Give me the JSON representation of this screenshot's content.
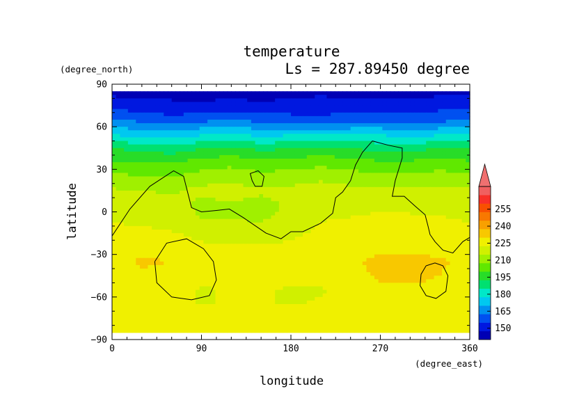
{
  "chart_data": {
    "type": "heatmap",
    "title": "temperature",
    "subtitle": "Ls = 287.89450 degree",
    "xlabel": "longitude",
    "ylabel": "latitude",
    "x_unit": "(degree_east)",
    "y_unit": "(degree_north)",
    "xlim": [
      0,
      360
    ],
    "ylim": [
      -90,
      90
    ],
    "xticks": [
      0,
      90,
      180,
      270,
      360
    ],
    "yticks": [
      90,
      60,
      30,
      0,
      -30,
      -60,
      -90
    ],
    "colorbar": {
      "levels": [
        150,
        165,
        180,
        195,
        210,
        225,
        240,
        255
      ],
      "tick_labels": [
        "150",
        "165",
        "180",
        "195",
        "210",
        "225",
        "240",
        "255"
      ],
      "colors": [
        "#0000b4",
        "#0018e0",
        "#0050f0",
        "#0090f0",
        "#00c8f0",
        "#00e8c8",
        "#00e070",
        "#28dc28",
        "#60e800",
        "#a0f000",
        "#d0f000",
        "#f0f000",
        "#f8c800",
        "#f8a000",
        "#f87800",
        "#f85000",
        "#f83028",
        "#f06060"
      ],
      "extend": "max"
    },
    "x": [
      0,
      30,
      60,
      90,
      120,
      150,
      180,
      210,
      240,
      270,
      300,
      330,
      360
    ],
    "y": [
      85,
      75,
      65,
      55,
      45,
      35,
      25,
      15,
      5,
      -5,
      -15,
      -25,
      -35,
      -45,
      -55,
      -65,
      -75,
      -85
    ],
    "values": [
      [
        145,
        145,
        145,
        145,
        145,
        145,
        145,
        145,
        145,
        145,
        145,
        145,
        145
      ],
      [
        152,
        150,
        149,
        148,
        150,
        148,
        150,
        152,
        150,
        150,
        150,
        152,
        152
      ],
      [
        163,
        160,
        158,
        160,
        162,
        160,
        158,
        156,
        160,
        160,
        158,
        160,
        163
      ],
      [
        176,
        174,
        172,
        176,
        178,
        174,
        176,
        178,
        176,
        176,
        174,
        176,
        176
      ],
      [
        192,
        190,
        188,
        192,
        194,
        190,
        192,
        194,
        192,
        190,
        190,
        192,
        192
      ],
      [
        201,
        200,
        199,
        203,
        205,
        202,
        203,
        205,
        203,
        201,
        201,
        203,
        201
      ],
      [
        209,
        208,
        207,
        211,
        212,
        210,
        211,
        213,
        211,
        209,
        209,
        211,
        209
      ],
      [
        216,
        215,
        214,
        217,
        218,
        216,
        217,
        219,
        217,
        216,
        216,
        217,
        216
      ],
      [
        220,
        219,
        218,
        213,
        214,
        213,
        216,
        220,
        219,
        220,
        220,
        221,
        220
      ],
      [
        222,
        221,
        220,
        215,
        215,
        214,
        217,
        222,
        223,
        225,
        224,
        223,
        222
      ],
      [
        224,
        224,
        223,
        220,
        219,
        219,
        221,
        224,
        225,
        226,
        225,
        225,
        224
      ],
      [
        226,
        227,
        227,
        224,
        224,
        223,
        224,
        225,
        226,
        227,
        227,
        227,
        226
      ],
      [
        228,
        231,
        230,
        226,
        226,
        225,
        226,
        226,
        228,
        233,
        233,
        231,
        228
      ],
      [
        227,
        229,
        228,
        224,
        224,
        224,
        224,
        224,
        226,
        232,
        233,
        230,
        227
      ],
      [
        226,
        226,
        225,
        222,
        223,
        223,
        222,
        222,
        224,
        227,
        228,
        227,
        226
      ],
      [
        226,
        225,
        224,
        222,
        223,
        223,
        222,
        223,
        225,
        226,
        226,
        226,
        226
      ],
      [
        227,
        226,
        226,
        226,
        226,
        226,
        226,
        226,
        226,
        226,
        226,
        226,
        227
      ],
      [
        227,
        227,
        227,
        227,
        227,
        227,
        227,
        227,
        227,
        227,
        227,
        227,
        227
      ]
    ],
    "contours": [
      [
        [
          0,
          -17
        ],
        [
          18,
          2
        ],
        [
          38,
          18
        ],
        [
          62,
          29
        ],
        [
          72,
          25
        ],
        [
          80,
          3
        ],
        [
          90,
          0
        ],
        [
          105,
          1
        ],
        [
          118,
          2
        ],
        [
          132,
          -4
        ],
        [
          155,
          -15
        ],
        [
          170,
          -19
        ],
        [
          180,
          -14
        ],
        [
          192,
          -14
        ],
        [
          210,
          -8
        ],
        [
          222,
          -1
        ],
        [
          225,
          10
        ],
        [
          232,
          14
        ],
        [
          240,
          22
        ],
        [
          245,
          33
        ],
        [
          252,
          42
        ],
        [
          262,
          50
        ],
        [
          278,
          47
        ],
        [
          292,
          45
        ],
        [
          292,
          38
        ],
        [
          285,
          22
        ],
        [
          282,
          11
        ],
        [
          294,
          11
        ],
        [
          305,
          4
        ],
        [
          315,
          -2
        ],
        [
          318,
          -10
        ],
        [
          320,
          -16
        ],
        [
          325,
          -21
        ],
        [
          333,
          -27
        ],
        [
          343,
          -29
        ],
        [
          353,
          -21
        ],
        [
          360,
          -18
        ]
      ],
      [
        [
          141,
          22
        ],
        [
          139,
          27
        ],
        [
          147,
          29
        ],
        [
          153,
          25
        ],
        [
          151,
          18
        ],
        [
          144,
          18
        ],
        [
          141,
          22
        ]
      ],
      [
        [
          43,
          -35
        ],
        [
          55,
          -22
        ],
        [
          75,
          -19
        ],
        [
          92,
          -26
        ],
        [
          102,
          -35
        ],
        [
          105,
          -48
        ],
        [
          98,
          -59
        ],
        [
          80,
          -62
        ],
        [
          60,
          -60
        ],
        [
          45,
          -50
        ],
        [
          43,
          -35
        ]
      ],
      [
        [
          316,
          -38
        ],
        [
          325,
          -36
        ],
        [
          333,
          -38
        ],
        [
          338,
          -45
        ],
        [
          336,
          -56
        ],
        [
          326,
          -61
        ],
        [
          316,
          -59
        ],
        [
          310,
          -52
        ],
        [
          311,
          -44
        ],
        [
          316,
          -38
        ]
      ]
    ]
  }
}
